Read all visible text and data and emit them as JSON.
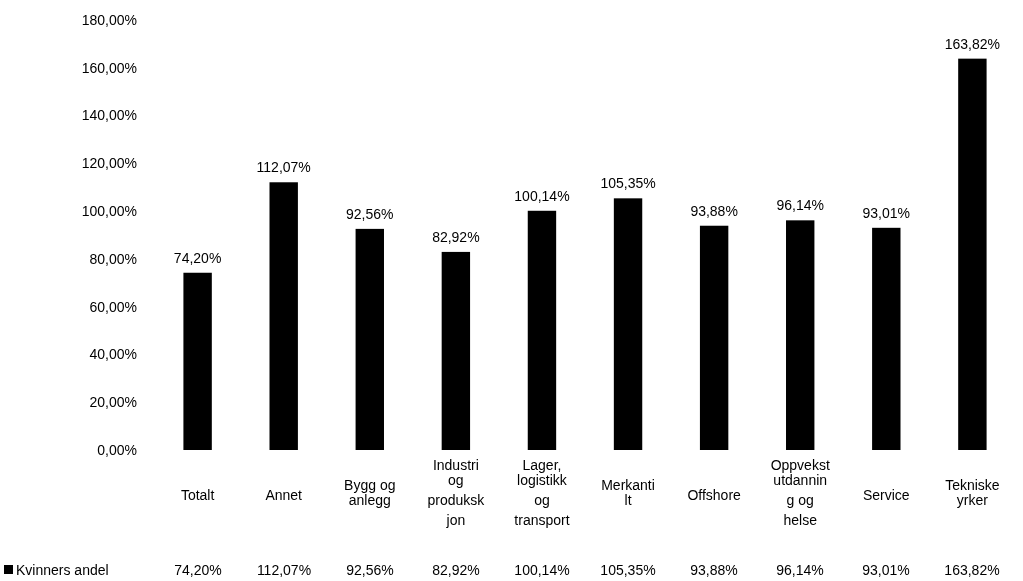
{
  "chart_data": {
    "type": "bar",
    "categories": [
      "Totalt",
      "Annet",
      "Bygg og\nanlegg",
      "Industri\nog\nproduksk\njon",
      "Lager,\nlogistikk\nog\ntransport",
      "Merkanti\nlt",
      "Offshore",
      "Oppvekst\nutdannin\ng og\nhelse",
      "Service",
      "Tekniske\nyrker"
    ],
    "series": [
      {
        "name": "Kvinners andel",
        "color": "#000000",
        "values": [
          74.2,
          112.07,
          92.56,
          82.92,
          100.14,
          105.35,
          93.88,
          96.14,
          93.01,
          163.82
        ],
        "value_labels": [
          "74,20%",
          "112,07%",
          "92,56%",
          "82,92%",
          "100,14%",
          "105,35%",
          "93,88%",
          "96,14%",
          "93,01%",
          "163,82%"
        ]
      }
    ],
    "ylim": [
      0,
      180
    ],
    "yticks": [
      {
        "value": 0,
        "label": "0,00%"
      },
      {
        "value": 20,
        "label": "20,00%"
      },
      {
        "value": 40,
        "label": "40,00%"
      },
      {
        "value": 60,
        "label": "60,00%"
      },
      {
        "value": 80,
        "label": "80,00%"
      },
      {
        "value": 100,
        "label": "100,00%"
      },
      {
        "value": 120,
        "label": "120,00%"
      },
      {
        "value": 140,
        "label": "140,00%"
      },
      {
        "value": 160,
        "label": "160,00%"
      },
      {
        "value": 180,
        "label": "180,00%"
      }
    ],
    "grid": false,
    "legend": "bottom"
  }
}
